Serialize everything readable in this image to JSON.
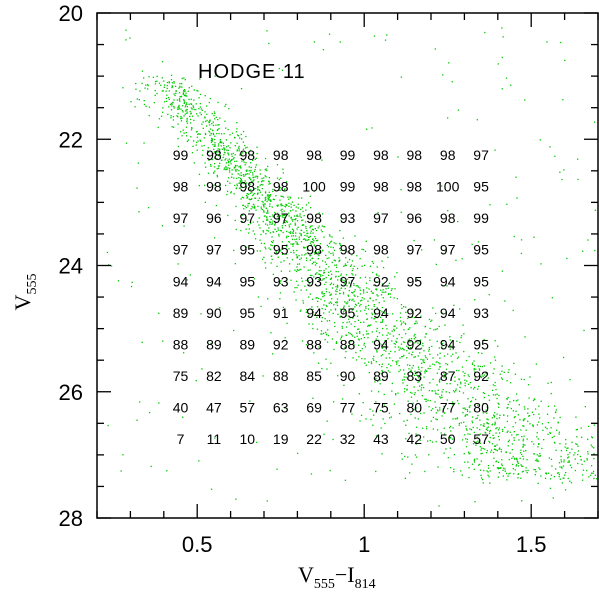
{
  "chart_data": {
    "type": "scatter",
    "title": "HODGE 11",
    "xlabel": {
      "main": "V",
      "sub1": "555",
      "op": "−I",
      "sub2": "814"
    },
    "ylabel": {
      "main": "V",
      "sub": "555"
    },
    "xlim": [
      0.2,
      1.7
    ],
    "ylim": [
      28,
      20
    ],
    "y_inverted": true,
    "x_ticks": [
      0.5,
      1,
      1.5
    ],
    "x_tick_labels": [
      "0.5",
      "1",
      "1.5"
    ],
    "y_ticks": [
      20,
      22,
      24,
      26,
      28
    ],
    "y_tick_labels": [
      "20",
      "22",
      "24",
      "26",
      "28"
    ],
    "point_color": "#00cc00",
    "grid_x": [
      0.45,
      0.55,
      0.65,
      0.75,
      0.85,
      0.95,
      1.05,
      1.15,
      1.25,
      1.35
    ],
    "grid_y": [
      22.25,
      22.75,
      23.25,
      23.75,
      24.25,
      24.75,
      25.25,
      25.75,
      26.25,
      26.75
    ],
    "completeness": [
      [
        "99",
        "98",
        "98",
        "98",
        "98",
        "99",
        "98",
        "98",
        "98",
        "97"
      ],
      [
        "98",
        "98",
        "98",
        "98",
        "100",
        "99",
        "98",
        "98",
        "100",
        "95"
      ],
      [
        "97",
        "96",
        "97",
        "97",
        "98",
        "93",
        "97",
        "96",
        "98",
        "99"
      ],
      [
        "97",
        "97",
        "95",
        "95",
        "98",
        "98",
        "98",
        "97",
        "97",
        "95"
      ],
      [
        "94",
        "94",
        "95",
        "93",
        "93",
        "97",
        "92",
        "95",
        "94",
        "95"
      ],
      [
        "89",
        "90",
        "95",
        "91",
        "94",
        "95",
        "94",
        "92",
        "94",
        "93"
      ],
      [
        "88",
        "89",
        "89",
        "92",
        "88",
        "88",
        "94",
        "92",
        "94",
        "95"
      ],
      [
        "75",
        "82",
        "84",
        "88",
        "85",
        "90",
        "89",
        "83",
        "87",
        "92"
      ],
      [
        "40",
        "47",
        "57",
        "63",
        "69",
        "77",
        "75",
        "80",
        "77",
        "80"
      ],
      [
        "7",
        "11",
        "10",
        "19",
        "22",
        "32",
        "43",
        "42",
        "50",
        "57"
      ]
    ]
  }
}
